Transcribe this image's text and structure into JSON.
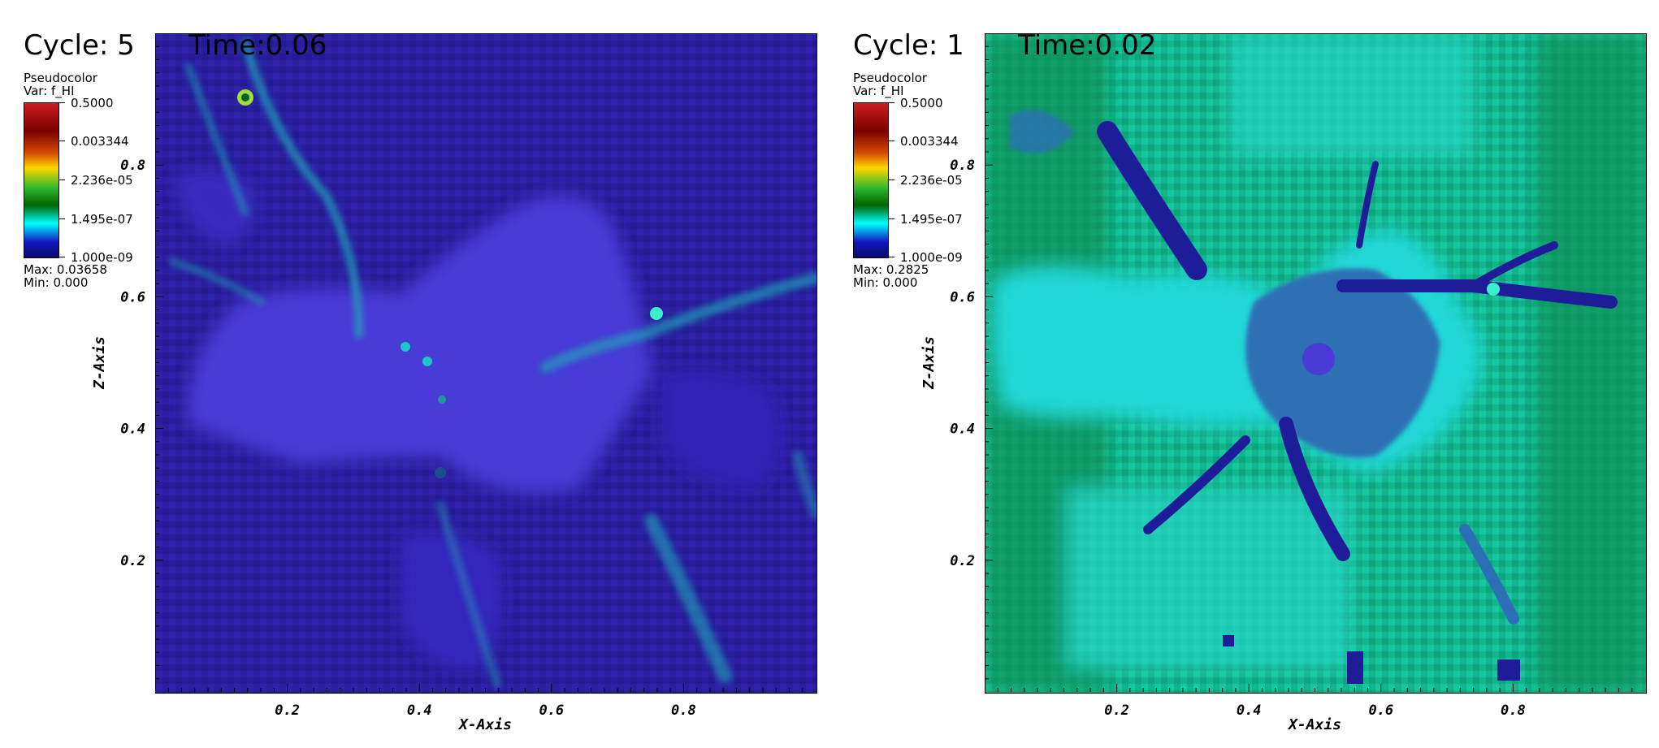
{
  "panels": [
    {
      "cycle_label": "Cycle: 5",
      "time_label": "Time:0.06",
      "legend": {
        "plot_type": "Pseudocolor",
        "variable": "Var: f_HI",
        "ticks": [
          "0.5000",
          "0.003344",
          "2.236e-05",
          "1.495e-07",
          "1.000e-09"
        ],
        "max_label": "Max: 0.03658",
        "min_label": "Min: 0.000"
      },
      "theme": "ionized"
    },
    {
      "cycle_label": "Cycle: 1",
      "time_label": "Time:0.02",
      "legend": {
        "plot_type": "Pseudocolor",
        "variable": "Var: f_HI",
        "ticks": [
          "0.5000",
          "0.003344",
          "2.236e-05",
          "1.495e-07",
          "1.000e-09"
        ],
        "max_label": "Max: 0.2825",
        "min_label": "Min: 0.000"
      },
      "theme": "neutral"
    }
  ],
  "chart_data": [
    {
      "type": "heatmap",
      "title": "Cycle: 5  Time:0.06",
      "variable": "f_HI",
      "xlabel": "X-Axis",
      "ylabel": "Z-Axis",
      "xlim": [
        0,
        1
      ],
      "ylim": [
        0,
        1
      ],
      "x_ticks": [
        0.2,
        0.4,
        0.6,
        0.8
      ],
      "y_ticks": [
        0.2,
        0.4,
        0.6,
        0.8
      ],
      "x_tick_labels": [
        "0.2",
        "0.4",
        "0.6",
        "0.8"
      ],
      "y_tick_labels": [
        "0.2",
        "0.4",
        "0.6",
        "0.8"
      ],
      "colorbar": {
        "scale": "log",
        "ticks": [
          0.5,
          0.003344,
          2.236e-05,
          1.495e-07,
          1e-09
        ]
      },
      "max": 0.03658,
      "min": 0.0
    },
    {
      "type": "heatmap",
      "title": "Cycle: 1  Time:0.02",
      "variable": "f_HI",
      "xlabel": "X-Axis",
      "ylabel": "Z-Axis",
      "xlim": [
        0,
        1
      ],
      "ylim": [
        0,
        1
      ],
      "x_ticks": [
        0.2,
        0.4,
        0.6,
        0.8
      ],
      "y_ticks": [
        0.2,
        0.4,
        0.6,
        0.8
      ],
      "x_tick_labels": [
        "0.2",
        "0.4",
        "0.6",
        "0.8"
      ],
      "y_tick_labels": [
        "0.2",
        "0.4",
        "0.6",
        "0.8"
      ],
      "colorbar": {
        "scale": "log",
        "ticks": [
          0.5,
          0.003344,
          2.236e-05,
          1.495e-07,
          1e-09
        ]
      },
      "max": 0.2825,
      "min": 0.0
    }
  ]
}
